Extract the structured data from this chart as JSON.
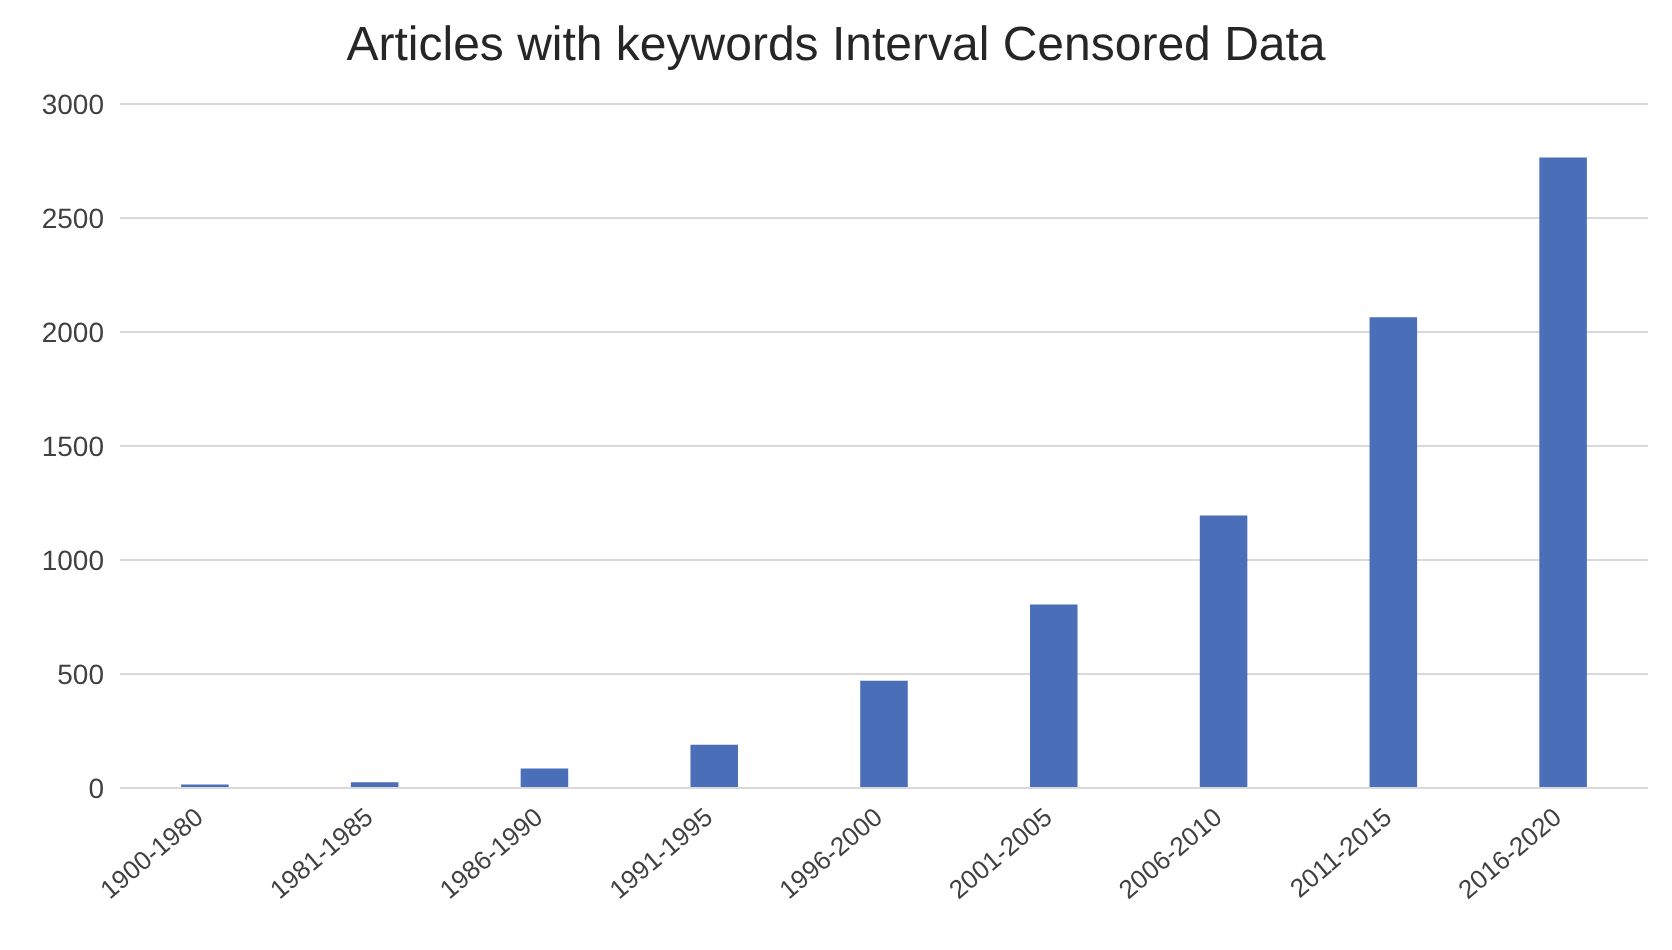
{
  "chart_data": {
    "type": "bar",
    "title": "Articles with keywords Interval Censored Data",
    "categories": [
      "1900-1980",
      "1981-1985",
      "1986-1990",
      "1991-1995",
      "1996-2000",
      "2001-2005",
      "2006-2010",
      "2011-2015",
      "2016-2020"
    ],
    "values": [
      15,
      25,
      85,
      190,
      470,
      805,
      1195,
      2065,
      2765
    ],
    "color": "#4a6eb8",
    "ylim": [
      0,
      3000
    ],
    "yticks": [
      0,
      500,
      1000,
      1500,
      2000,
      2500,
      3000
    ],
    "grid": "y"
  }
}
